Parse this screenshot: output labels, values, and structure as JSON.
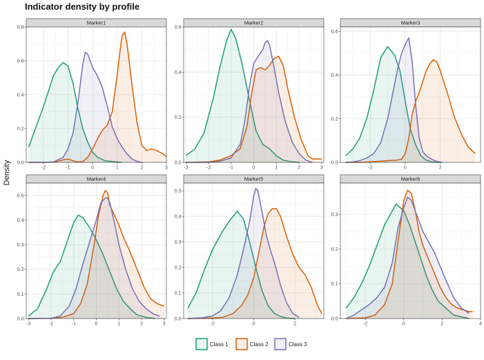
{
  "chart_data": {
    "type": "area",
    "title": "Indicator density by profile",
    "xlabel": "",
    "ylabel": "Density",
    "grid": true,
    "legend_position": "bottom",
    "series_styles": [
      {
        "name": "Class 1",
        "color": "#1b9e77"
      },
      {
        "name": "Class 2",
        "color": "#d95f02"
      },
      {
        "name": "Class 3",
        "color": "#7570b3"
      }
    ],
    "panels": [
      {
        "name": "Marker1",
        "xlim": [
          -2.7,
          3.0
        ],
        "ylim": [
          0,
          0.8
        ],
        "xticks": [
          -2,
          -1,
          0,
          1,
          2,
          3
        ],
        "yticks": [
          0.0,
          0.2,
          0.4,
          0.6,
          0.8
        ],
        "series": [
          {
            "name": "Class 1",
            "x": [
              -2.6,
              -2.3,
              -2.0,
              -1.8,
              -1.6,
              -1.4,
              -1.2,
              -1.0,
              -0.8,
              -0.6,
              -0.4,
              -0.2,
              0.0,
              0.2,
              0.5,
              0.8,
              1.2
            ],
            "y": [
              0.09,
              0.21,
              0.33,
              0.42,
              0.51,
              0.56,
              0.59,
              0.57,
              0.47,
              0.32,
              0.2,
              0.12,
              0.06,
              0.03,
              0.01,
              0.005,
              0.0
            ]
          },
          {
            "name": "Class 2",
            "x": [
              -2.6,
              -2.0,
              -1.5,
              -1.2,
              -1.0,
              -0.8,
              -0.6,
              -0.4,
              -0.2,
              0.0,
              0.2,
              0.4,
              0.6,
              0.8,
              1.0,
              1.1,
              1.2,
              1.3,
              1.4,
              1.6,
              1.8,
              2.0,
              2.2,
              2.4,
              2.6,
              2.8,
              3.0
            ],
            "y": [
              0.0,
              0.0,
              0.003,
              0.015,
              0.02,
              0.01,
              0.002,
              0.005,
              0.03,
              0.08,
              0.14,
              0.19,
              0.22,
              0.3,
              0.52,
              0.64,
              0.75,
              0.77,
              0.7,
              0.46,
              0.24,
              0.1,
              0.07,
              0.08,
              0.07,
              0.055,
              0.035
            ]
          },
          {
            "name": "Class 3",
            "x": [
              -2.6,
              -2.0,
              -1.6,
              -1.2,
              -1.0,
              -0.8,
              -0.6,
              -0.4,
              -0.3,
              -0.2,
              0.0,
              0.2,
              0.4,
              0.6,
              0.8,
              1.0,
              1.2,
              1.4,
              1.6,
              1.8,
              2.0
            ],
            "y": [
              0.0,
              0.0,
              0.002,
              0.03,
              0.08,
              0.17,
              0.35,
              0.58,
              0.65,
              0.64,
              0.56,
              0.51,
              0.44,
              0.33,
              0.21,
              0.14,
              0.09,
              0.05,
              0.02,
              0.007,
              0.0
            ]
          }
        ]
      },
      {
        "name": "Marker2",
        "xlim": [
          -3.1,
          3.1
        ],
        "ylim": [
          0,
          0.6
        ],
        "xticks": [
          -3,
          -2,
          -1,
          0,
          1,
          2,
          3
        ],
        "yticks": [
          0.0,
          0.2,
          0.4,
          0.6
        ],
        "series": [
          {
            "name": "Class 1",
            "x": [
              -3.0,
              -2.6,
              -2.2,
              -1.8,
              -1.5,
              -1.2,
              -1.0,
              -0.8,
              -0.5,
              -0.2,
              0.1,
              0.4,
              0.7,
              1.0,
              1.3,
              1.6,
              2.0
            ],
            "y": [
              0.03,
              0.06,
              0.13,
              0.28,
              0.42,
              0.54,
              0.59,
              0.55,
              0.43,
              0.28,
              0.14,
              0.08,
              0.06,
              0.03,
              0.01,
              0.004,
              0.0
            ]
          },
          {
            "name": "Class 2",
            "x": [
              -3.0,
              -2.0,
              -1.5,
              -1.0,
              -0.6,
              -0.3,
              -0.1,
              0.1,
              0.3,
              0.5,
              0.7,
              0.9,
              1.1,
              1.3,
              1.5,
              1.8,
              2.1,
              2.4,
              2.6,
              2.8,
              3.0
            ],
            "y": [
              0.0,
              0.002,
              0.01,
              0.03,
              0.06,
              0.16,
              0.3,
              0.41,
              0.42,
              0.41,
              0.43,
              0.46,
              0.47,
              0.43,
              0.33,
              0.2,
              0.1,
              0.03,
              0.015,
              0.015,
              0.015
            ]
          },
          {
            "name": "Class 3",
            "x": [
              -3.0,
              -2.0,
              -1.5,
              -1.0,
              -0.6,
              -0.4,
              -0.2,
              0.0,
              0.2,
              0.4,
              0.5,
              0.6,
              0.7,
              0.9,
              1.1,
              1.4,
              1.7,
              2.0,
              2.3,
              2.6
            ],
            "y": [
              0.0,
              0.0,
              0.005,
              0.02,
              0.08,
              0.18,
              0.33,
              0.44,
              0.47,
              0.5,
              0.53,
              0.54,
              0.52,
              0.42,
              0.31,
              0.18,
              0.09,
              0.04,
              0.01,
              0.0
            ]
          }
        ]
      },
      {
        "name": "Marker3",
        "xlim": [
          -3.7,
          4.3
        ],
        "ylim": [
          0,
          0.62
        ],
        "xticks": [
          -2,
          0,
          2
        ],
        "yticks": [
          0.0,
          0.2,
          0.4,
          0.6
        ],
        "series": [
          {
            "name": "Class 1",
            "x": [
              -3.4,
              -3.0,
              -2.6,
              -2.2,
              -1.8,
              -1.4,
              -1.0,
              -0.6,
              -0.3,
              0.0,
              0.3,
              0.6,
              0.9,
              1.2,
              1.5,
              2.0
            ],
            "y": [
              0.03,
              0.06,
              0.11,
              0.2,
              0.33,
              0.48,
              0.53,
              0.49,
              0.42,
              0.28,
              0.15,
              0.08,
              0.03,
              0.01,
              0.003,
              0.0
            ]
          },
          {
            "name": "Class 2",
            "x": [
              -3.4,
              -2.5,
              -2.0,
              -1.5,
              -1.0,
              -0.5,
              -0.2,
              0.0,
              0.2,
              0.4,
              0.6,
              0.8,
              1.0,
              1.2,
              1.4,
              1.6,
              1.8,
              2.0,
              2.4,
              2.8,
              3.2,
              3.6,
              4.0
            ],
            "y": [
              0.0,
              0.0,
              0.003,
              0.005,
              0.008,
              0.01,
              0.015,
              0.04,
              0.11,
              0.22,
              0.28,
              0.32,
              0.37,
              0.42,
              0.45,
              0.47,
              0.46,
              0.42,
              0.32,
              0.21,
              0.13,
              0.07,
              0.04
            ]
          },
          {
            "name": "Class 3",
            "x": [
              -3.4,
              -3.0,
              -2.6,
              -2.2,
              -1.8,
              -1.4,
              -1.0,
              -0.7,
              -0.4,
              -0.2,
              0.0,
              0.2,
              0.4,
              0.6,
              0.8,
              1.0,
              1.2,
              1.5,
              1.8,
              2.1
            ],
            "y": [
              0.0,
              0.002,
              0.008,
              0.02,
              0.04,
              0.09,
              0.2,
              0.32,
              0.44,
              0.5,
              0.54,
              0.57,
              0.46,
              0.26,
              0.11,
              0.05,
              0.03,
              0.015,
              0.005,
              0.0
            ]
          }
        ]
      },
      {
        "name": "Marker4",
        "xlim": [
          -3.1,
          3.1
        ],
        "ylim": [
          0,
          0.55
        ],
        "xticks": [
          -3,
          -2,
          -1,
          0,
          1,
          2,
          3
        ],
        "yticks": [
          0.0,
          0.1,
          0.2,
          0.3,
          0.4,
          0.5
        ],
        "series": [
          {
            "name": "Class 1",
            "x": [
              -3.0,
              -2.6,
              -2.2,
              -1.9,
              -1.6,
              -1.3,
              -1.0,
              -0.8,
              -0.6,
              -0.3,
              0.0,
              0.3,
              0.6,
              0.9,
              1.2,
              1.5,
              1.8,
              2.2,
              2.6
            ],
            "y": [
              0.01,
              0.04,
              0.12,
              0.19,
              0.23,
              0.31,
              0.39,
              0.42,
              0.41,
              0.37,
              0.32,
              0.26,
              0.19,
              0.12,
              0.07,
              0.04,
              0.015,
              0.005,
              0.0
            ]
          },
          {
            "name": "Class 2",
            "x": [
              -3.0,
              -2.0,
              -1.5,
              -1.0,
              -0.7,
              -0.4,
              -0.1,
              0.1,
              0.3,
              0.4,
              0.5,
              0.6,
              0.8,
              1.0,
              1.2,
              1.5,
              1.8,
              2.1,
              2.4,
              2.7,
              3.0
            ],
            "y": [
              0.0,
              0.001,
              0.005,
              0.02,
              0.06,
              0.14,
              0.3,
              0.42,
              0.5,
              0.52,
              0.51,
              0.46,
              0.42,
              0.38,
              0.33,
              0.27,
              0.2,
              0.13,
              0.08,
              0.06,
              0.05
            ]
          },
          {
            "name": "Class 3",
            "x": [
              -3.0,
              -2.0,
              -1.6,
              -1.2,
              -0.9,
              -0.6,
              -0.3,
              0.0,
              0.2,
              0.4,
              0.5,
              0.6,
              0.8,
              1.0,
              1.3,
              1.6,
              1.9,
              2.2,
              2.5,
              2.8
            ],
            "y": [
              0.0,
              0.001,
              0.01,
              0.05,
              0.12,
              0.22,
              0.31,
              0.4,
              0.47,
              0.49,
              0.49,
              0.47,
              0.39,
              0.3,
              0.2,
              0.12,
              0.07,
              0.04,
              0.02,
              0.01
            ]
          }
        ]
      },
      {
        "name": "Marker5",
        "xlim": [
          -3.4,
          3.4
        ],
        "ylim": [
          0,
          0.53
        ],
        "xticks": [
          -2,
          0,
          2
        ],
        "yticks": [
          0.0,
          0.1,
          0.2,
          0.3,
          0.4,
          0.5
        ],
        "series": [
          {
            "name": "Class 1",
            "x": [
              -3.2,
              -2.8,
              -2.4,
              -2.0,
              -1.6,
              -1.2,
              -0.8,
              -0.5,
              -0.2,
              0.1,
              0.4,
              0.7,
              1.0,
              1.3,
              1.6,
              2.0
            ],
            "y": [
              0.04,
              0.1,
              0.19,
              0.27,
              0.33,
              0.38,
              0.42,
              0.39,
              0.3,
              0.2,
              0.11,
              0.05,
              0.02,
              0.008,
              0.002,
              0.0
            ]
          },
          {
            "name": "Class 2",
            "x": [
              -3.2,
              -2.0,
              -1.5,
              -1.0,
              -0.6,
              -0.3,
              0.0,
              0.3,
              0.5,
              0.7,
              0.9,
              1.1,
              1.3,
              1.6,
              1.9,
              2.2,
              2.5,
              2.8,
              3.1,
              3.3
            ],
            "y": [
              0.0,
              0.002,
              0.005,
              0.02,
              0.05,
              0.09,
              0.16,
              0.28,
              0.36,
              0.41,
              0.43,
              0.43,
              0.4,
              0.32,
              0.25,
              0.2,
              0.17,
              0.12,
              0.05,
              0.02
            ]
          },
          {
            "name": "Class 3",
            "x": [
              -3.2,
              -2.5,
              -2.0,
              -1.6,
              -1.2,
              -0.8,
              -0.5,
              -0.2,
              0.0,
              0.1,
              0.2,
              0.4,
              0.6,
              0.8,
              1.0,
              1.3,
              1.6,
              1.9,
              2.2
            ],
            "y": [
              0.0,
              0.003,
              0.01,
              0.03,
              0.08,
              0.17,
              0.27,
              0.38,
              0.48,
              0.51,
              0.5,
              0.42,
              0.33,
              0.27,
              0.22,
              0.13,
              0.06,
              0.02,
              0.005
            ]
          }
        ]
      },
      {
        "name": "Marker6",
        "xlim": [
          -3.3,
          4.0
        ],
        "ylim": [
          0,
          0.39
        ],
        "xticks": [
          -2,
          0,
          2,
          4
        ],
        "yticks": [
          0.0,
          0.1,
          0.2,
          0.3
        ],
        "series": [
          {
            "name": "Class 1",
            "x": [
              -3.0,
              -2.6,
              -2.2,
              -1.8,
              -1.4,
              -1.0,
              -0.6,
              -0.4,
              -0.2,
              0.0,
              0.3,
              0.6,
              0.9,
              1.2,
              1.5,
              1.8,
              2.2,
              2.6,
              3.0,
              3.4
            ],
            "y": [
              0.03,
              0.06,
              0.1,
              0.15,
              0.21,
              0.27,
              0.31,
              0.33,
              0.32,
              0.31,
              0.27,
              0.22,
              0.17,
              0.12,
              0.08,
              0.05,
              0.03,
              0.01,
              0.005,
              0.0
            ]
          },
          {
            "name": "Class 2",
            "x": [
              -3.0,
              -2.0,
              -1.5,
              -1.0,
              -0.6,
              -0.3,
              0.0,
              0.2,
              0.4,
              0.6,
              0.8,
              1.0,
              1.3,
              1.6,
              1.9,
              2.2,
              2.5,
              2.8,
              3.1,
              3.4,
              3.6
            ],
            "y": [
              0.0,
              0.002,
              0.01,
              0.04,
              0.1,
              0.22,
              0.34,
              0.37,
              0.36,
              0.31,
              0.25,
              0.21,
              0.17,
              0.13,
              0.09,
              0.06,
              0.04,
              0.03,
              0.025,
              0.02,
              0.02
            ]
          },
          {
            "name": "Class 3",
            "x": [
              -3.0,
              -2.6,
              -2.2,
              -1.8,
              -1.4,
              -1.0,
              -0.6,
              -0.3,
              0.0,
              0.2,
              0.4,
              0.6,
              0.8,
              1.0,
              1.3,
              1.6,
              1.9,
              2.2,
              2.6,
              3.0,
              3.4
            ],
            "y": [
              0.0,
              0.01,
              0.025,
              0.04,
              0.06,
              0.09,
              0.16,
              0.26,
              0.32,
              0.35,
              0.34,
              0.31,
              0.28,
              0.25,
              0.22,
              0.19,
              0.15,
              0.11,
              0.06,
              0.03,
              0.015
            ]
          }
        ]
      }
    ]
  }
}
